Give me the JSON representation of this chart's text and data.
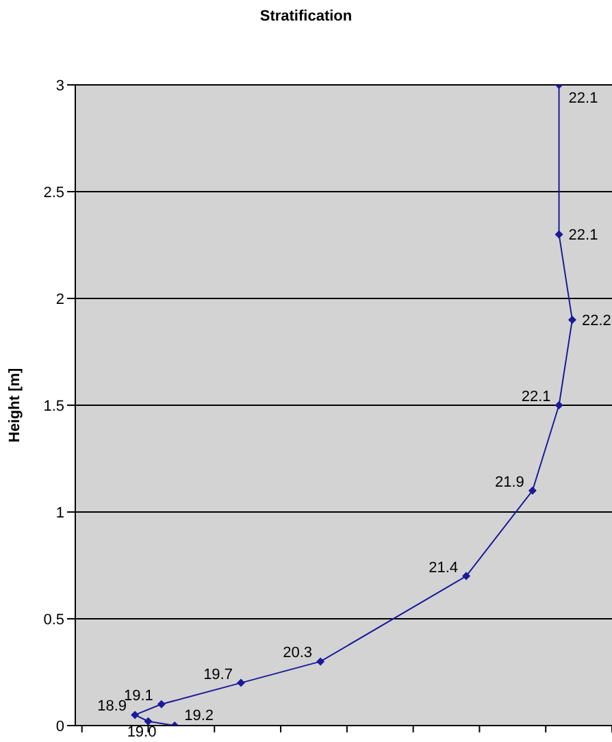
{
  "chart_data": {
    "type": "line",
    "orientation": "horizontal",
    "title": "Stratification",
    "ylabel": "Height [m]",
    "x": [
      3,
      2.3,
      1.9,
      1.5,
      1.1,
      0.7,
      0.3,
      0.2,
      0.1,
      0.05,
      0.02,
      0
    ],
    "values": [
      22.1,
      22.1,
      22.2,
      22.1,
      21.9,
      21.4,
      20.3,
      19.7,
      19.1,
      18.9,
      19.0,
      19.2
    ],
    "value_labels": [
      "22.1",
      "22.1",
      "22.2",
      "22.1",
      "21.9",
      "21.4",
      "20.3",
      "19.7",
      "19.1",
      "18.9",
      "19.0",
      "19.2"
    ],
    "color": "#1a1a9a",
    "marker": "diamond",
    "line_style": "solid",
    "xlim": [
      18.45,
      22.5
    ],
    "xticks": [
      {
        "value": 18.5,
        "label": null
      },
      {
        "value": 19,
        "label": null
      },
      {
        "value": 19.5,
        "label": null
      },
      {
        "value": 20,
        "label": null
      },
      {
        "value": 20.5,
        "label": null
      },
      {
        "value": 21,
        "label": null
      },
      {
        "value": 21.5,
        "label": null
      },
      {
        "value": 22,
        "label": null
      },
      {
        "value": 22.5,
        "label": null
      }
    ],
    "ylim": [
      0,
      3
    ],
    "yticks": [
      0,
      0.5,
      1,
      1.5,
      2,
      2.5,
      3
    ],
    "grid": "y",
    "tick_labels": "y"
  }
}
